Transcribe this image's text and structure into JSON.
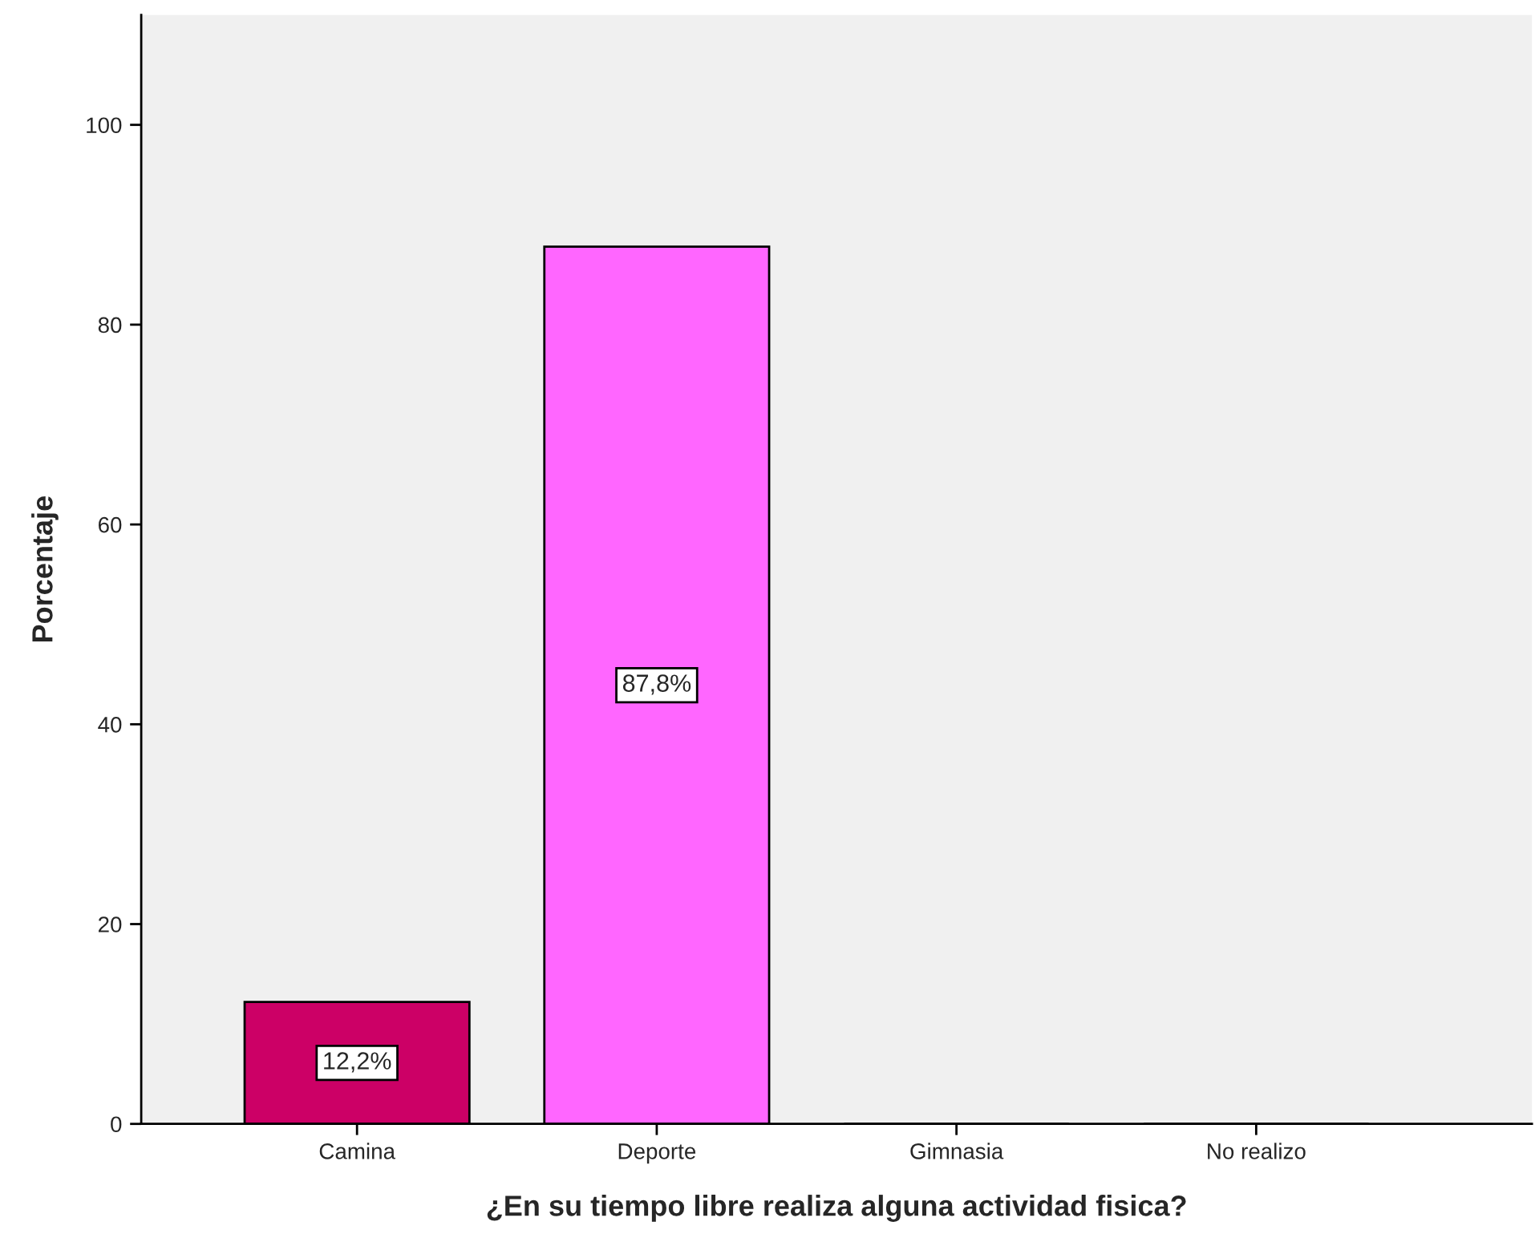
{
  "chart_data": {
    "type": "bar",
    "xlabel": "¿En su tiempo libre realiza alguna actividad fisica?",
    "ylabel": "Porcentaje",
    "categories": [
      "Camina",
      "Deporte",
      "Gimnasia",
      "No realizo"
    ],
    "values": [
      12.2,
      87.8,
      0,
      0
    ],
    "colors": [
      "#cc0066",
      "#ff66ff",
      "#cc0066",
      "#ff66ff"
    ],
    "value_labels": [
      "12,2%",
      "87,8%",
      null,
      null
    ],
    "ylim": [
      0,
      111
    ],
    "yticks": [
      0,
      20,
      40,
      60,
      80,
      100
    ],
    "grid": false
  }
}
